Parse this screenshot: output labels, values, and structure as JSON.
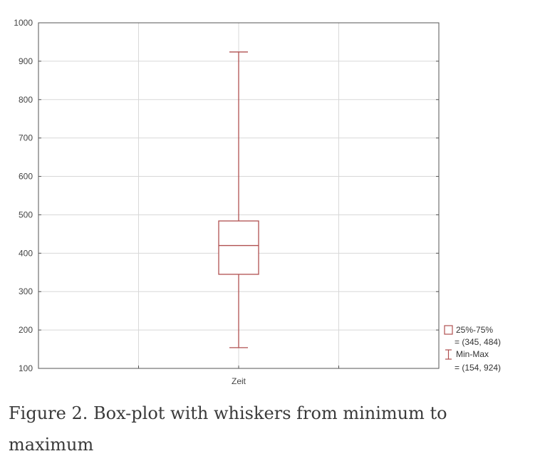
{
  "chart_data": {
    "type": "box",
    "categories": [
      "Zeit"
    ],
    "ylim": [
      100,
      1000
    ],
    "yticks": [
      100,
      200,
      300,
      400,
      500,
      600,
      700,
      800,
      900,
      1000
    ],
    "grid": true,
    "box": {
      "min": 154,
      "q1": 345,
      "median": 420,
      "q3": 484,
      "max": 924
    },
    "legend": {
      "position": "right-bottom",
      "items": [
        {
          "symbol": "box",
          "label": "25%-75%",
          "value": "= (345, 484)"
        },
        {
          "symbol": "whisker",
          "label": "Min-Max",
          "value": "= (154, 924)"
        }
      ]
    },
    "colors": {
      "box": "#b05050",
      "grid": "#d8d8d8",
      "axis": "#555555"
    }
  },
  "caption": "Figure 2. Box-plot with whiskers from minimum to maximum"
}
